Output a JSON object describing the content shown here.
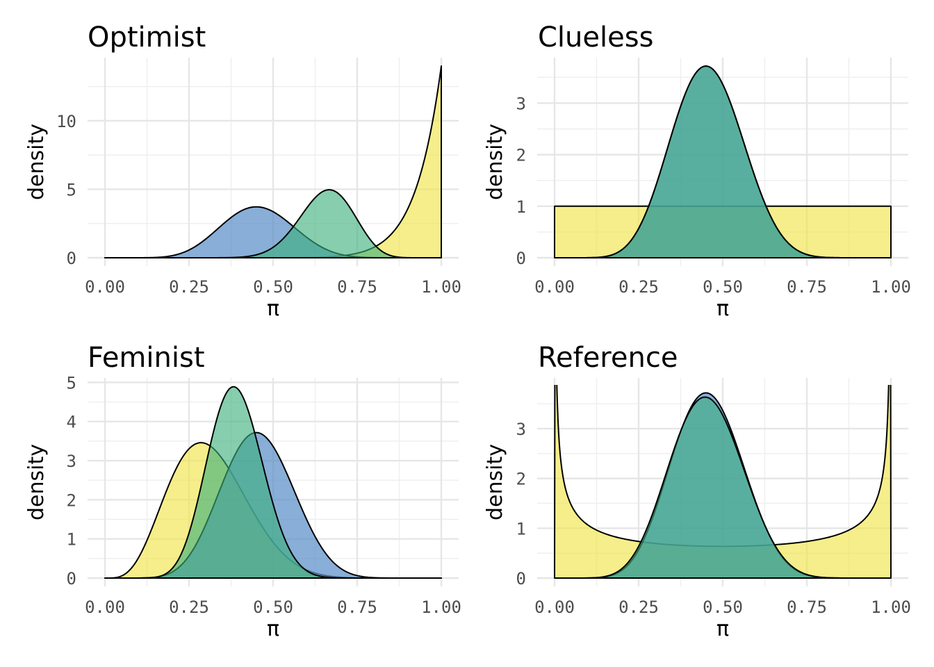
{
  "colors": {
    "prior": "#F0E442",
    "likelihood": "#5B8FC8",
    "posterior": "#3CB07C"
  },
  "chart_data": [
    {
      "type": "area",
      "title": "Optimist",
      "xlabel": "π",
      "ylabel": "density",
      "xlim": [
        0,
        1
      ],
      "ylim": [
        0,
        14
      ],
      "xticks": [
        0,
        0.25,
        0.5,
        0.75,
        1
      ],
      "xtick_labels": [
        "0.00",
        "0.25",
        "0.50",
        "0.75",
        "1.00"
      ],
      "yticks": [
        0,
        5,
        10
      ],
      "ytick_labels": [
        "0",
        "5",
        "10"
      ],
      "grid": true,
      "series": [
        {
          "role": "prior",
          "distribution": "beta",
          "params": [
            14,
            1
          ]
        },
        {
          "role": "likelihood",
          "distribution": "beta",
          "params": [
            10,
            12
          ]
        },
        {
          "role": "posterior",
          "distribution": "beta",
          "params": [
            23,
            12
          ]
        }
      ]
    },
    {
      "type": "area",
      "title": "Clueless",
      "xlabel": "π",
      "ylabel": "density",
      "xlim": [
        0,
        1
      ],
      "ylim": [
        0,
        3.72
      ],
      "xticks": [
        0,
        0.25,
        0.5,
        0.75,
        1
      ],
      "xtick_labels": [
        "0.00",
        "0.25",
        "0.50",
        "0.75",
        "1.00"
      ],
      "yticks": [
        0,
        1,
        2,
        3
      ],
      "ytick_labels": [
        "0",
        "1",
        "2",
        "3"
      ],
      "grid": true,
      "series": [
        {
          "role": "prior",
          "distribution": "beta",
          "params": [
            1,
            1
          ]
        },
        {
          "role": "likelihood",
          "distribution": "beta",
          "params": [
            10,
            12
          ]
        },
        {
          "role": "posterior",
          "distribution": "beta",
          "params": [
            10,
            12
          ]
        }
      ]
    },
    {
      "type": "area",
      "title": "Feminist",
      "xlabel": "π",
      "ylabel": "density",
      "xlim": [
        0,
        1
      ],
      "ylim": [
        0,
        4.9
      ],
      "xticks": [
        0,
        0.25,
        0.5,
        0.75,
        1
      ],
      "xtick_labels": [
        "0.00",
        "0.25",
        "0.50",
        "0.75",
        "1.00"
      ],
      "yticks": [
        0,
        1,
        2,
        3,
        4,
        5
      ],
      "ytick_labels": [
        "0",
        "1",
        "2",
        "3",
        "4",
        "5"
      ],
      "grid": true,
      "series": [
        {
          "role": "prior",
          "distribution": "beta",
          "params": [
            5,
            11
          ]
        },
        {
          "role": "likelihood",
          "distribution": "beta",
          "params": [
            10,
            12
          ]
        },
        {
          "role": "posterior",
          "distribution": "beta",
          "params": [
            14,
            22
          ]
        }
      ]
    },
    {
      "type": "area",
      "title": "Reference",
      "xlabel": "π",
      "ylabel": "density",
      "xlim": [
        0,
        1
      ],
      "ylim": [
        0,
        3.85
      ],
      "xticks": [
        0,
        0.25,
        0.5,
        0.75,
        1
      ],
      "xtick_labels": [
        "0.00",
        "0.25",
        "0.50",
        "0.75",
        "1.00"
      ],
      "yticks": [
        0,
        1,
        2,
        3
      ],
      "ytick_labels": [
        "0",
        "1",
        "2",
        "3"
      ],
      "grid": true,
      "series": [
        {
          "role": "prior",
          "distribution": "beta",
          "params": [
            0.5,
            0.5
          ]
        },
        {
          "role": "likelihood",
          "distribution": "beta",
          "params": [
            10,
            12
          ]
        },
        {
          "role": "posterior",
          "distribution": "beta",
          "params": [
            9.5,
            11.5
          ]
        }
      ]
    }
  ]
}
